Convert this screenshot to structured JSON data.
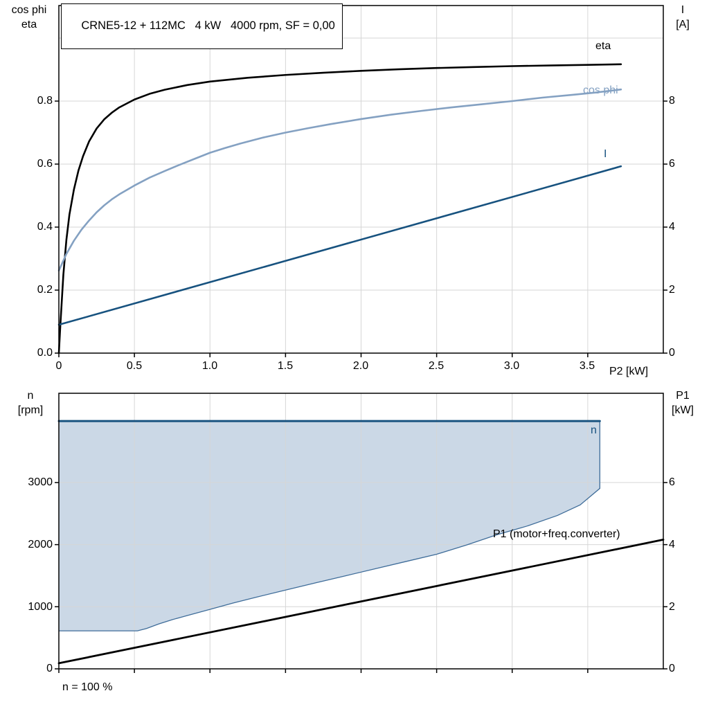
{
  "title": "CRNE5-12 + 112MC   4 kW   4000 rpm, SF = 0,00",
  "colors": {
    "black": "#000000",
    "dark_blue": "#17527F",
    "steel_blue": "#84A1C2",
    "fill_blue": "#CBD8E6",
    "region_edge": "#3E6C99",
    "grid": "#D6D6D6"
  },
  "chart_data": [
    {
      "type": "line",
      "title": "CRNE5-12 + 112MC   4 kW   4000 rpm, SF = 0,00",
      "x_axis": {
        "label": "P2 [kW]",
        "range": [
          0,
          4
        ],
        "ticks": [
          0,
          0.5,
          1.0,
          1.5,
          2.0,
          2.5,
          3.0,
          3.5
        ],
        "tick_labels": [
          "0",
          "0.5",
          "1.0",
          "1.5",
          "2.0",
          "2.5",
          "3.0",
          "3.5"
        ]
      },
      "left_axis": {
        "line1": "cos phi",
        "line2": "eta",
        "range": [
          0,
          1.1033
        ],
        "ticks": [
          0,
          0.2,
          0.4,
          0.6,
          0.8
        ],
        "grid_ticks": [
          0.2,
          0.4,
          0.6,
          0.8,
          1.0
        ],
        "tick_labels": [
          "0.0",
          "0.2",
          "0.4",
          "0.6",
          "0.8"
        ]
      },
      "right_axis": {
        "line1": "I",
        "line2": "[A]",
        "range": [
          0,
          11.033
        ],
        "ticks": [
          0,
          2,
          4,
          6,
          8
        ],
        "tick_labels": [
          "0",
          "2",
          "4",
          "6",
          "8"
        ]
      },
      "series": [
        {
          "id": "eta",
          "label": "eta",
          "axis": "left",
          "color": "#000000",
          "width": 2.6,
          "points": [
            [
              0,
              0
            ],
            [
              0.01,
              0.09
            ],
            [
              0.02,
              0.17
            ],
            [
              0.03,
              0.25
            ],
            [
              0.05,
              0.36
            ],
            [
              0.07,
              0.44
            ],
            [
              0.1,
              0.52
            ],
            [
              0.13,
              0.58
            ],
            [
              0.16,
              0.625
            ],
            [
              0.2,
              0.672
            ],
            [
              0.25,
              0.713
            ],
            [
              0.3,
              0.742
            ],
            [
              0.35,
              0.763
            ],
            [
              0.4,
              0.78
            ],
            [
              0.5,
              0.805
            ],
            [
              0.6,
              0.823
            ],
            [
              0.7,
              0.836
            ],
            [
              0.85,
              0.851
            ],
            [
              1.0,
              0.862
            ],
            [
              1.25,
              0.874
            ],
            [
              1.5,
              0.883
            ],
            [
              1.75,
              0.89
            ],
            [
              2.0,
              0.896
            ],
            [
              2.25,
              0.901
            ],
            [
              2.5,
              0.905
            ],
            [
              2.75,
              0.908
            ],
            [
              3.0,
              0.911
            ],
            [
              3.25,
              0.913
            ],
            [
              3.5,
              0.915
            ],
            [
              3.72,
              0.917
            ]
          ]
        },
        {
          "id": "cos-phi",
          "label": "cos phi",
          "axis": "left",
          "color": "#84A1C2",
          "width": 2.6,
          "points": [
            [
              0,
              0.262
            ],
            [
              0.05,
              0.315
            ],
            [
              0.1,
              0.357
            ],
            [
              0.15,
              0.392
            ],
            [
              0.2,
              0.421
            ],
            [
              0.25,
              0.447
            ],
            [
              0.3,
              0.469
            ],
            [
              0.35,
              0.488
            ],
            [
              0.4,
              0.504
            ],
            [
              0.5,
              0.532
            ],
            [
              0.6,
              0.557
            ],
            [
              0.7,
              0.578
            ],
            [
              0.8,
              0.598
            ],
            [
              0.9,
              0.617
            ],
            [
              1.0,
              0.636
            ],
            [
              1.1,
              0.651
            ],
            [
              1.2,
              0.665
            ],
            [
              1.35,
              0.684
            ],
            [
              1.5,
              0.7
            ],
            [
              1.65,
              0.714
            ],
            [
              1.8,
              0.727
            ],
            [
              2.0,
              0.743
            ],
            [
              2.2,
              0.757
            ],
            [
              2.4,
              0.769
            ],
            [
              2.6,
              0.78
            ],
            [
              2.8,
              0.79
            ],
            [
              3.0,
              0.8
            ],
            [
              3.2,
              0.811
            ],
            [
              3.4,
              0.82
            ],
            [
              3.55,
              0.827
            ],
            [
              3.72,
              0.837
            ]
          ]
        },
        {
          "id": "current",
          "label": "I",
          "axis": "right",
          "color": "#17527F",
          "width": 2.6,
          "points": [
            [
              0,
              0.9
            ],
            [
              3.72,
              5.93
            ]
          ]
        }
      ]
    },
    {
      "type": "line",
      "footnote": "n = 100 %",
      "x_axis": {
        "label": "",
        "range": [
          0,
          4
        ],
        "ticks": [
          0,
          0.5,
          1.0,
          1.5,
          2.0,
          2.5,
          3.0,
          3.5
        ],
        "tick_labels": []
      },
      "left_axis": {
        "line1": "n",
        "line2": "[rpm]",
        "range": [
          0,
          4437
        ],
        "ticks": [
          0,
          1000,
          2000,
          3000
        ],
        "grid_ticks": [
          1000,
          2000,
          3000
        ],
        "tick_labels": [
          "0",
          "1000",
          "2000",
          "3000"
        ]
      },
      "right_axis": {
        "line1": "P1",
        "line2": "[kW]",
        "range": [
          0,
          8.874
        ],
        "ticks": [
          0,
          2,
          4,
          6
        ],
        "tick_labels": [
          "0",
          "2",
          "4",
          "6"
        ]
      },
      "region": {
        "name": "speed-operating-range",
        "n_max": 3990,
        "x_start": 0,
        "x_end": 3.58,
        "lower_boundary": [
          [
            0,
            612
          ],
          [
            0.52,
            612
          ],
          [
            0.58,
            650
          ],
          [
            0.66,
            722
          ],
          [
            0.75,
            792
          ],
          [
            0.85,
            858
          ],
          [
            1.0,
            957
          ],
          [
            1.15,
            1058
          ],
          [
            1.3,
            1150
          ],
          [
            1.5,
            1268
          ],
          [
            1.7,
            1385
          ],
          [
            1.9,
            1500
          ],
          [
            2.1,
            1615
          ],
          [
            2.3,
            1730
          ],
          [
            2.5,
            1845
          ],
          [
            2.7,
            1995
          ],
          [
            2.9,
            2160
          ],
          [
            3.1,
            2300
          ],
          [
            3.3,
            2470
          ],
          [
            3.45,
            2640
          ],
          [
            3.58,
            2905
          ]
        ]
      },
      "series": [
        {
          "id": "n",
          "label": "n",
          "axis": "left",
          "color": "#17527F",
          "width": 3,
          "points": [
            [
              0,
              3990
            ],
            [
              3.58,
              3990
            ]
          ]
        },
        {
          "id": "p1",
          "label": "P1 (motor+freq.converter)",
          "axis": "right",
          "color": "#000000",
          "width": 2.8,
          "points": [
            [
              0,
              0.18
            ],
            [
              4.0,
              4.16
            ]
          ]
        }
      ]
    }
  ]
}
